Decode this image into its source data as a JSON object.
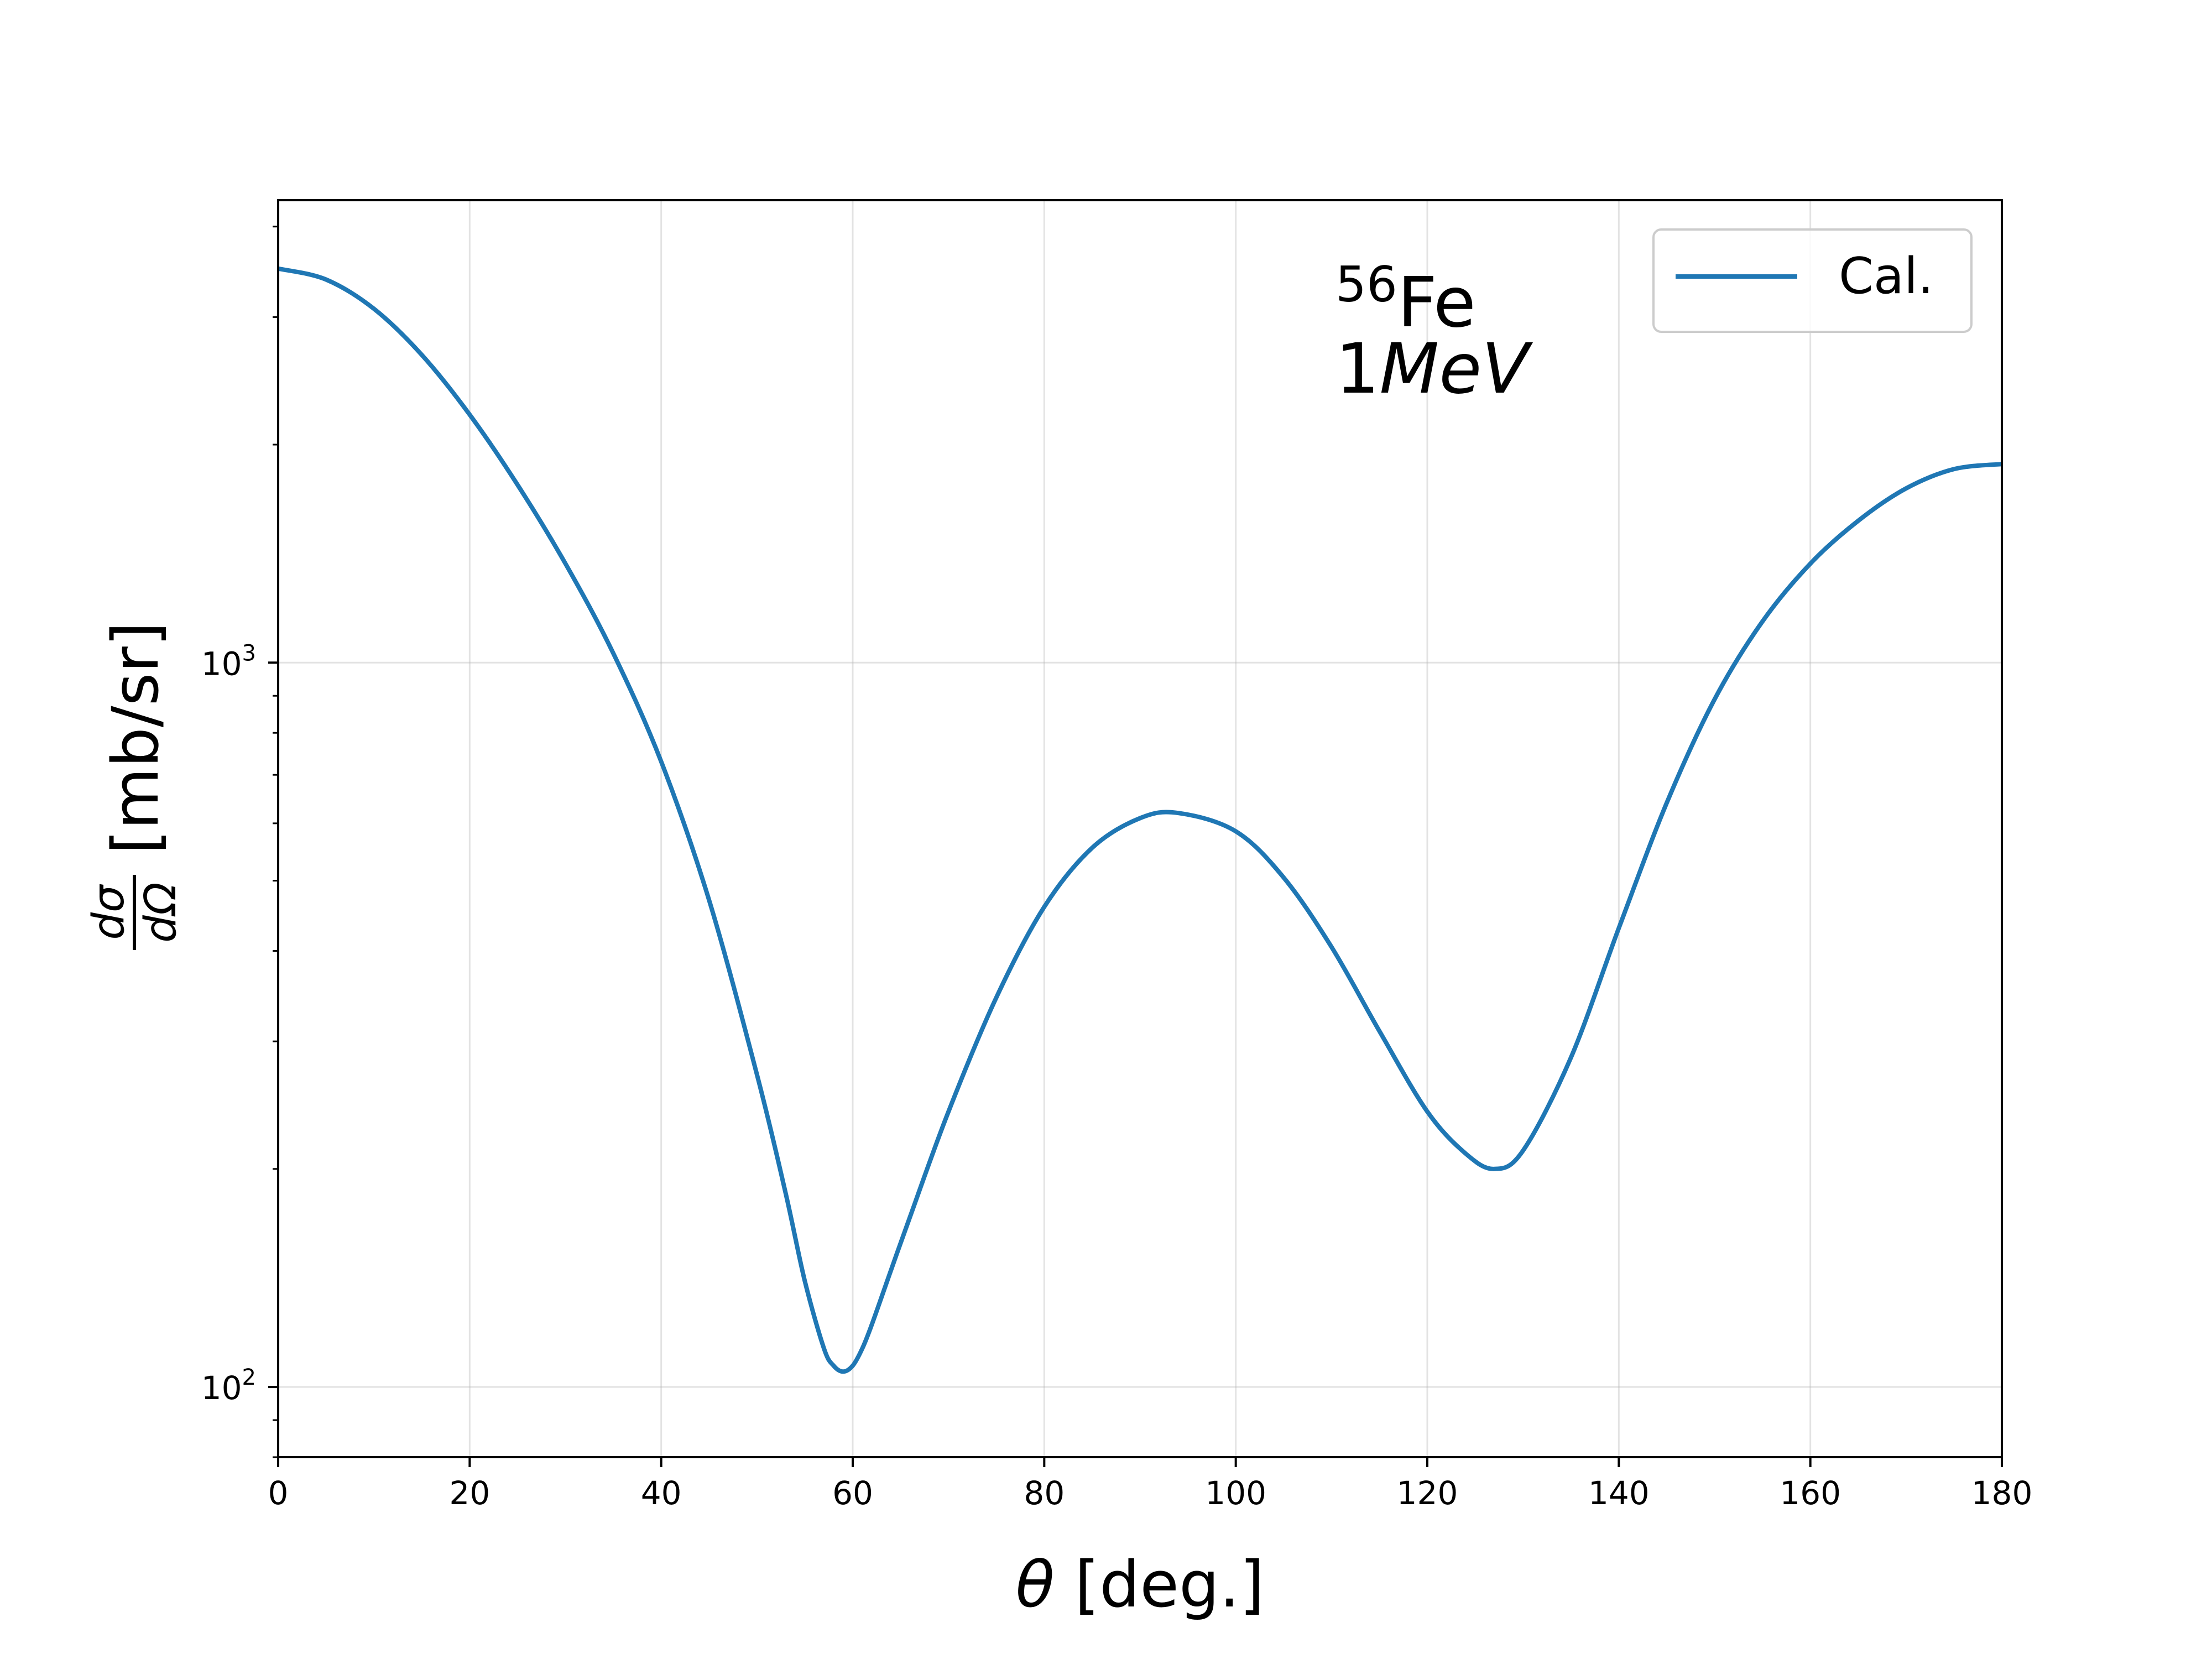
{
  "chart_data": {
    "type": "line",
    "xlabel_symbol": "θ",
    "xlabel_text": " [deg.]",
    "ylabel_numerator": "dσ",
    "ylabel_denominator": "dΩ",
    "ylabel_unit": "[mb/sr]",
    "xlim": [
      0,
      180
    ],
    "ylim": [
      80,
      4350
    ],
    "yscale": "log",
    "grid": true,
    "xticks": [
      "0",
      "20",
      "40",
      "60",
      "80",
      "100",
      "120",
      "140",
      "160",
      "180"
    ],
    "yticks": [
      {
        "base": "10",
        "exp": "2",
        "value": 100
      },
      {
        "base": "10",
        "exp": "3",
        "value": 1000
      }
    ],
    "legend": {
      "position": "top-right",
      "entries": [
        "Cal."
      ]
    },
    "annotation": {
      "mass_number": "56",
      "element": "Fe",
      "energy_value": "1",
      "energy_unit": "MeV"
    },
    "series": [
      {
        "name": "Cal.",
        "color": "#1f77b4",
        "x": [
          0,
          5,
          10,
          15,
          20,
          25,
          30,
          35,
          40,
          45,
          50,
          53,
          55,
          57,
          58,
          59,
          60,
          61,
          62,
          64,
          66,
          70,
          75,
          80,
          85,
          90,
          94,
          100,
          105,
          110,
          115,
          120,
          124,
          127,
          130,
          135,
          140,
          145,
          150,
          155,
          160,
          165,
          170,
          175,
          180
        ],
        "y": [
          3500,
          3380,
          3080,
          2660,
          2200,
          1760,
          1370,
          1030,
          730,
          470,
          270,
          185,
          140,
          113,
          107,
          105,
          107,
          113,
          122,
          145,
          172,
          240,
          345,
          460,
          555,
          610,
          620,
          585,
          505,
          405,
          310,
          240,
          210,
          200,
          212,
          285,
          430,
          640,
          890,
          1140,
          1370,
          1570,
          1740,
          1850,
          1880
        ]
      }
    ]
  }
}
